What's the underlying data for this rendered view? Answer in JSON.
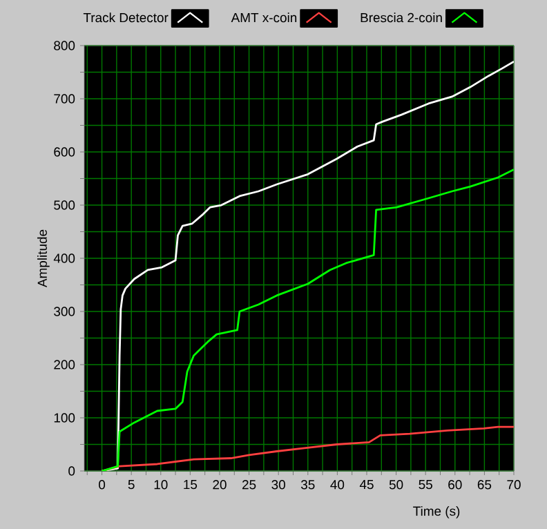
{
  "chart_data": {
    "type": "line",
    "xlabel": "Time (s)",
    "ylabel": "Amplitude",
    "xlim": [
      -3,
      70
    ],
    "ylim": [
      0,
      800
    ],
    "xticks": [
      {
        "value": -2.5,
        "label": null
      },
      0,
      {
        "value": 2.5,
        "label": null
      },
      5,
      {
        "value": 7.5,
        "label": null
      },
      10,
      {
        "value": 12.5,
        "label": null
      },
      15,
      {
        "value": 17.5,
        "label": null
      },
      20,
      {
        "value": 22.5,
        "label": null
      },
      25,
      {
        "value": 27.5,
        "label": null
      },
      30,
      {
        "value": 32.5,
        "label": null
      },
      35,
      {
        "value": 37.5,
        "label": null
      },
      40,
      {
        "value": 42.5,
        "label": null
      },
      45,
      {
        "value": 47.5,
        "label": null
      },
      50,
      {
        "value": 52.5,
        "label": null
      },
      55,
      {
        "value": 57.5,
        "label": null
      },
      60,
      {
        "value": 62.5,
        "label": null
      },
      65,
      {
        "value": 67.5,
        "label": null
      },
      70
    ],
    "yticks": [
      0,
      {
        "value": 50,
        "label": null
      },
      100,
      {
        "value": 150,
        "label": null
      },
      200,
      {
        "value": 250,
        "label": null
      },
      300,
      {
        "value": 350,
        "label": null
      },
      400,
      {
        "value": 450,
        "label": null
      },
      500,
      {
        "value": 550,
        "label": null
      },
      600,
      {
        "value": 650,
        "label": null
      },
      700,
      {
        "value": 750,
        "label": null
      },
      800
    ],
    "grid": true,
    "legend": "top",
    "series": [
      {
        "name": "Track Detector",
        "color": "#ffffff",
        "x": [
          0,
          2.7,
          3.0,
          3.2,
          3.5,
          4.0,
          5.5,
          7.8,
          10.2,
          12.5,
          12.9,
          13.7,
          15.3,
          17.2,
          18.4,
          20.3,
          23.4,
          26.6,
          29.7,
          35,
          39.9,
          43.4,
          46.2,
          46.6,
          47.7,
          50.9,
          55.5,
          59.5,
          62.6,
          65.7,
          68,
          70
        ],
        "values": [
          0,
          5,
          217,
          304,
          330,
          343,
          361,
          378,
          383,
          396,
          443,
          461,
          465,
          483,
          496,
          500,
          517,
          526,
          539,
          558,
          587,
          610,
          622,
          652,
          657,
          670,
          691,
          704,
          722,
          743,
          757,
          770
        ]
      },
      {
        "name": "AMT x-coin",
        "color": "#ff4040",
        "x": [
          0,
          3,
          9.4,
          15.6,
          21.9,
          25,
          29.7,
          34.4,
          39.9,
          45.4,
          47.3,
          52.3,
          58.7,
          64.9,
          67.3,
          70
        ],
        "values": [
          0,
          9,
          13,
          22,
          24,
          30,
          37,
          43,
          50,
          54,
          67,
          70,
          76,
          80,
          83,
          83
        ]
      },
      {
        "name": "Brescia 2-coin",
        "color": "#00ff00",
        "x": [
          0,
          2.7,
          3.0,
          5.5,
          9.4,
          12.5,
          13.7,
          14.5,
          15.6,
          18,
          19.5,
          23,
          23.4,
          26.6,
          29.7,
          35,
          38.75,
          41.5,
          46.2,
          46.6,
          50.1,
          55.5,
          59.5,
          62.6,
          67.3,
          70
        ],
        "values": [
          0,
          9,
          74,
          91,
          113,
          117,
          130,
          187,
          217,
          243,
          257,
          265,
          300,
          313,
          330,
          352,
          378,
          391,
          406,
          491,
          496,
          513,
          526,
          535,
          552,
          567
        ]
      }
    ]
  }
}
